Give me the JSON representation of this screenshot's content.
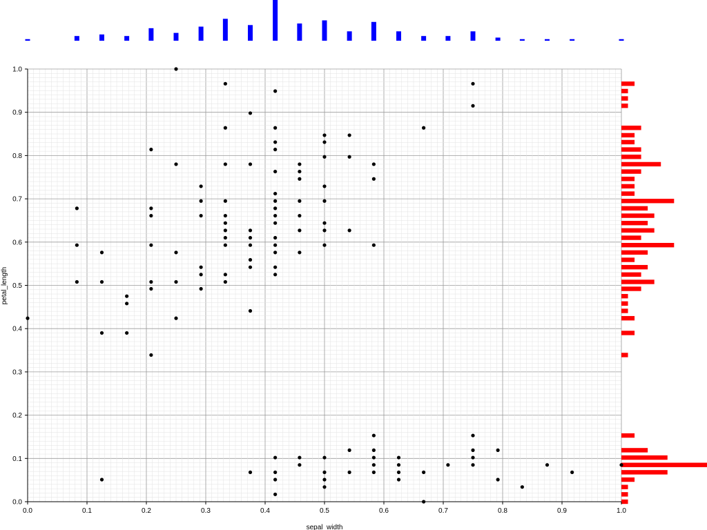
{
  "chart_data": {
    "type": "scatter",
    "title": "",
    "xlabel": "sepal_width",
    "ylabel": "petal_length",
    "xlim": [
      0,
      1
    ],
    "ylim": [
      0,
      1
    ],
    "grid": true,
    "grid_minor": true,
    "x_ticks": [
      "0.0",
      "0.1",
      "0.2",
      "0.3",
      "0.4",
      "0.5",
      "0.6",
      "0.7",
      "0.8",
      "0.9",
      "1.0"
    ],
    "y_ticks": [
      "0.0",
      "0.1",
      "0.2",
      "0.3",
      "0.4",
      "0.5",
      "0.6",
      "0.7",
      "0.8",
      "0.9",
      "1.0"
    ],
    "point_color": "#000000",
    "points": [
      [
        0.25,
        1.0
      ],
      [
        0.333,
        0.966
      ],
      [
        0.75,
        0.966
      ],
      [
        0.417,
        0.949
      ],
      [
        0.75,
        0.915
      ],
      [
        0.375,
        0.898
      ],
      [
        0.333,
        0.864
      ],
      [
        0.417,
        0.864
      ],
      [
        0.667,
        0.864
      ],
      [
        0.5,
        0.847
      ],
      [
        0.542,
        0.847
      ],
      [
        0.417,
        0.831
      ],
      [
        0.5,
        0.831
      ],
      [
        0.208,
        0.814
      ],
      [
        0.417,
        0.814
      ],
      [
        0.5,
        0.797
      ],
      [
        0.542,
        0.797
      ],
      [
        0.25,
        0.78
      ],
      [
        0.333,
        0.78
      ],
      [
        0.375,
        0.78
      ],
      [
        0.458,
        0.78
      ],
      [
        0.583,
        0.78
      ],
      [
        0.417,
        0.763
      ],
      [
        0.458,
        0.763
      ],
      [
        0.458,
        0.746
      ],
      [
        0.583,
        0.746
      ],
      [
        0.292,
        0.729
      ],
      [
        0.5,
        0.729
      ],
      [
        0.417,
        0.712
      ],
      [
        0.292,
        0.695
      ],
      [
        0.333,
        0.695
      ],
      [
        0.417,
        0.695
      ],
      [
        0.458,
        0.695
      ],
      [
        0.5,
        0.695
      ],
      [
        0.083,
        0.678
      ],
      [
        0.208,
        0.678
      ],
      [
        0.417,
        0.678
      ],
      [
        0.208,
        0.661
      ],
      [
        0.292,
        0.661
      ],
      [
        0.333,
        0.661
      ],
      [
        0.417,
        0.661
      ],
      [
        0.458,
        0.661
      ],
      [
        0.333,
        0.644
      ],
      [
        0.417,
        0.644
      ],
      [
        0.5,
        0.644
      ],
      [
        0.333,
        0.627
      ],
      [
        0.375,
        0.627
      ],
      [
        0.458,
        0.627
      ],
      [
        0.5,
        0.627
      ],
      [
        0.542,
        0.627
      ],
      [
        0.333,
        0.61
      ],
      [
        0.375,
        0.61
      ],
      [
        0.417,
        0.61
      ],
      [
        0.083,
        0.593
      ],
      [
        0.208,
        0.593
      ],
      [
        0.333,
        0.593
      ],
      [
        0.375,
        0.593
      ],
      [
        0.417,
        0.593
      ],
      [
        0.5,
        0.593
      ],
      [
        0.583,
        0.593
      ],
      [
        0.125,
        0.576
      ],
      [
        0.25,
        0.576
      ],
      [
        0.417,
        0.576
      ],
      [
        0.458,
        0.576
      ],
      [
        0.375,
        0.559
      ],
      [
        0.292,
        0.542
      ],
      [
        0.375,
        0.542
      ],
      [
        0.417,
        0.542
      ],
      [
        0.292,
        0.525
      ],
      [
        0.333,
        0.525
      ],
      [
        0.417,
        0.525
      ],
      [
        0.083,
        0.508
      ],
      [
        0.125,
        0.508
      ],
      [
        0.208,
        0.508
      ],
      [
        0.25,
        0.508
      ],
      [
        0.333,
        0.508
      ],
      [
        0.208,
        0.492
      ],
      [
        0.292,
        0.492
      ],
      [
        0.167,
        0.475
      ],
      [
        0.167,
        0.458
      ],
      [
        0.375,
        0.441
      ],
      [
        0.0,
        0.424
      ],
      [
        0.25,
        0.424
      ],
      [
        0.125,
        0.39
      ],
      [
        0.167,
        0.39
      ],
      [
        0.208,
        0.339
      ],
      [
        0.583,
        0.153
      ],
      [
        0.75,
        0.153
      ],
      [
        0.542,
        0.119
      ],
      [
        0.583,
        0.119
      ],
      [
        0.75,
        0.119
      ],
      [
        0.792,
        0.119
      ],
      [
        0.417,
        0.102
      ],
      [
        0.458,
        0.102
      ],
      [
        0.5,
        0.102
      ],
      [
        0.583,
        0.102
      ],
      [
        0.625,
        0.102
      ],
      [
        0.75,
        0.102
      ],
      [
        0.458,
        0.085
      ],
      [
        0.583,
        0.085
      ],
      [
        0.625,
        0.085
      ],
      [
        0.708,
        0.085
      ],
      [
        0.75,
        0.085
      ],
      [
        0.875,
        0.085
      ],
      [
        1.0,
        0.085
      ],
      [
        0.375,
        0.068
      ],
      [
        0.417,
        0.068
      ],
      [
        0.5,
        0.068
      ],
      [
        0.542,
        0.068
      ],
      [
        0.583,
        0.068
      ],
      [
        0.625,
        0.068
      ],
      [
        0.667,
        0.068
      ],
      [
        0.917,
        0.068
      ],
      [
        0.125,
        0.051
      ],
      [
        0.417,
        0.051
      ],
      [
        0.5,
        0.051
      ],
      [
        0.625,
        0.051
      ],
      [
        0.792,
        0.051
      ],
      [
        0.5,
        0.034
      ],
      [
        0.833,
        0.034
      ],
      [
        0.417,
        0.017
      ],
      [
        0.667,
        0.0
      ]
    ],
    "x_histogram": {
      "color": "#0000ff",
      "bins": [
        {
          "x": 0.0,
          "count": 1
        },
        {
          "x": 0.083,
          "count": 3
        },
        {
          "x": 0.125,
          "count": 4
        },
        {
          "x": 0.167,
          "count": 3
        },
        {
          "x": 0.208,
          "count": 8
        },
        {
          "x": 0.25,
          "count": 5
        },
        {
          "x": 0.292,
          "count": 9
        },
        {
          "x": 0.333,
          "count": 14
        },
        {
          "x": 0.375,
          "count": 10
        },
        {
          "x": 0.417,
          "count": 26
        },
        {
          "x": 0.458,
          "count": 11
        },
        {
          "x": 0.5,
          "count": 13
        },
        {
          "x": 0.542,
          "count": 6
        },
        {
          "x": 0.583,
          "count": 12
        },
        {
          "x": 0.625,
          "count": 6
        },
        {
          "x": 0.667,
          "count": 3
        },
        {
          "x": 0.708,
          "count": 3
        },
        {
          "x": 0.75,
          "count": 6
        },
        {
          "x": 0.792,
          "count": 2
        },
        {
          "x": 0.833,
          "count": 1
        },
        {
          "x": 0.875,
          "count": 1
        },
        {
          "x": 0.917,
          "count": 1
        },
        {
          "x": 1.0,
          "count": 1
        }
      ]
    },
    "y_histogram": {
      "color": "#ff0000",
      "bins": [
        {
          "y": 0.966,
          "count": 2
        },
        {
          "y": 0.949,
          "count": 1
        },
        {
          "y": 0.932,
          "count": 1
        },
        {
          "y": 0.915,
          "count": 1
        },
        {
          "y": 0.864,
          "count": 3
        },
        {
          "y": 0.847,
          "count": 2
        },
        {
          "y": 0.831,
          "count": 2
        },
        {
          "y": 0.814,
          "count": 3
        },
        {
          "y": 0.797,
          "count": 3
        },
        {
          "y": 0.78,
          "count": 6
        },
        {
          "y": 0.763,
          "count": 3
        },
        {
          "y": 0.746,
          "count": 2
        },
        {
          "y": 0.729,
          "count": 2
        },
        {
          "y": 0.712,
          "count": 2
        },
        {
          "y": 0.695,
          "count": 8
        },
        {
          "y": 0.678,
          "count": 4
        },
        {
          "y": 0.661,
          "count": 5
        },
        {
          "y": 0.644,
          "count": 4
        },
        {
          "y": 0.627,
          "count": 5
        },
        {
          "y": 0.61,
          "count": 3
        },
        {
          "y": 0.593,
          "count": 8
        },
        {
          "y": 0.576,
          "count": 4
        },
        {
          "y": 0.559,
          "count": 2
        },
        {
          "y": 0.542,
          "count": 4
        },
        {
          "y": 0.525,
          "count": 3
        },
        {
          "y": 0.508,
          "count": 5
        },
        {
          "y": 0.492,
          "count": 3
        },
        {
          "y": 0.475,
          "count": 1
        },
        {
          "y": 0.458,
          "count": 1
        },
        {
          "y": 0.441,
          "count": 1
        },
        {
          "y": 0.424,
          "count": 2
        },
        {
          "y": 0.39,
          "count": 2
        },
        {
          "y": 0.339,
          "count": 1
        },
        {
          "y": 0.153,
          "count": 2
        },
        {
          "y": 0.119,
          "count": 4
        },
        {
          "y": 0.102,
          "count": 7
        },
        {
          "y": 0.085,
          "count": 13
        },
        {
          "y": 0.068,
          "count": 7
        },
        {
          "y": 0.051,
          "count": 2
        },
        {
          "y": 0.034,
          "count": 1
        },
        {
          "y": 0.017,
          "count": 1
        },
        {
          "y": 0.0,
          "count": 1
        }
      ]
    }
  }
}
